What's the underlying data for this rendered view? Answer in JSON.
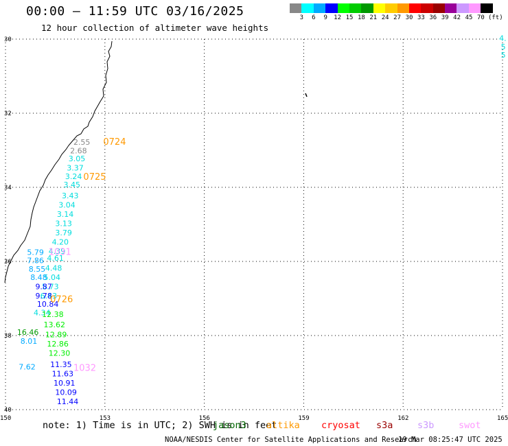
{
  "header": {
    "title": "00:00 — 11:59 UTC 03/16/2025",
    "subtitle": "12 hour collection of altimeter wave heights"
  },
  "legend": {
    "colors": [
      "#888888",
      "#00ffff",
      "#00aaff",
      "#0000ff",
      "#00ff00",
      "#00cc00",
      "#009900",
      "#ffff00",
      "#ffcc00",
      "#ff9900",
      "#ff0000",
      "#cc0000",
      "#990000",
      "#990099",
      "#cc99ff",
      "#ff99ff",
      "#000000"
    ],
    "labels": [
      "3",
      "6",
      "9",
      "12",
      "15",
      "18",
      "21",
      "24",
      "27",
      "30",
      "33",
      "36",
      "39",
      "42",
      "45",
      "70",
      "(ft)"
    ]
  },
  "axes": {
    "lat_labels": [
      "30",
      "32",
      "34",
      "36",
      "38",
      "40"
    ],
    "lon_labels": [
      "150",
      "153",
      "156",
      "159",
      "162",
      "165"
    ]
  },
  "chart_data": {
    "type": "scatter",
    "x_range": [
      150,
      165
    ],
    "y_range": [
      -40,
      -30
    ],
    "points": [
      {
        "lon": 152.05,
        "lat": -32.85,
        "v": "2.55",
        "c": "#888888"
      },
      {
        "lon": 151.95,
        "lat": -33.08,
        "v": "2.68",
        "c": "#888888"
      },
      {
        "lon": 151.9,
        "lat": -33.3,
        "v": "3.05",
        "c": "#00dddd"
      },
      {
        "lon": 151.85,
        "lat": -33.55,
        "v": "3.37",
        "c": "#00dddd"
      },
      {
        "lon": 151.8,
        "lat": -33.78,
        "v": "3.24",
        "c": "#00dddd"
      },
      {
        "lon": 151.75,
        "lat": -34.0,
        "v": "3.45",
        "c": "#00dddd"
      },
      {
        "lon": 151.7,
        "lat": -34.3,
        "v": "3.43",
        "c": "#00dddd"
      },
      {
        "lon": 151.6,
        "lat": -34.55,
        "v": "3.04",
        "c": "#00dddd"
      },
      {
        "lon": 151.55,
        "lat": -34.8,
        "v": "3.14",
        "c": "#00dddd"
      },
      {
        "lon": 151.5,
        "lat": -35.05,
        "v": "3.13",
        "c": "#00dddd"
      },
      {
        "lon": 151.5,
        "lat": -35.3,
        "v": "3.79",
        "c": "#00dddd"
      },
      {
        "lon": 151.4,
        "lat": -35.55,
        "v": "4.20",
        "c": "#00dddd"
      },
      {
        "lon": 151.3,
        "lat": -35.8,
        "v": "4.39",
        "c": "#00dddd"
      },
      {
        "lon": 151.25,
        "lat": -35.98,
        "v": "4.61",
        "c": "#00dddd"
      },
      {
        "lon": 151.2,
        "lat": -36.25,
        "v": "4.48",
        "c": "#00dddd"
      },
      {
        "lon": 151.15,
        "lat": -36.5,
        "v": "5.04",
        "c": "#00dddd"
      },
      {
        "lon": 151.1,
        "lat": -36.75,
        "v": "5.73",
        "c": "#00dddd"
      },
      {
        "lon": 151.05,
        "lat": -37.0,
        "v": "6.43",
        "c": "#00dddd"
      },
      {
        "lon": 150.65,
        "lat": -35.82,
        "v": "5.79",
        "c": "#00aaff"
      },
      {
        "lon": 150.65,
        "lat": -36.05,
        "v": "7.86",
        "c": "#00aaff"
      },
      {
        "lon": 150.7,
        "lat": -36.28,
        "v": "8.55",
        "c": "#00aaff"
      },
      {
        "lon": 150.75,
        "lat": -36.5,
        "v": "8.48",
        "c": "#00aaff"
      },
      {
        "lon": 150.9,
        "lat": -36.75,
        "v": "9.87",
        "c": "#0000ff"
      },
      {
        "lon": 150.9,
        "lat": -37.0,
        "v": "9.78",
        "c": "#0000ff"
      },
      {
        "lon": 150.95,
        "lat": -37.22,
        "v": "10.84",
        "c": "#0000ff"
      },
      {
        "lon": 150.85,
        "lat": -37.45,
        "v": "4.34",
        "c": "#00dddd"
      },
      {
        "lon": 151.1,
        "lat": -37.5,
        "v": "12.38",
        "c": "#00ee00"
      },
      {
        "lon": 151.15,
        "lat": -37.78,
        "v": "13.62",
        "c": "#00ee00"
      },
      {
        "lon": 151.2,
        "lat": -38.05,
        "v": "12.89",
        "c": "#00ee00"
      },
      {
        "lon": 151.25,
        "lat": -38.3,
        "v": "12.86",
        "c": "#00ee00"
      },
      {
        "lon": 151.3,
        "lat": -38.55,
        "v": "12.30",
        "c": "#00ee00"
      },
      {
        "lon": 150.35,
        "lat": -37.98,
        "v": "16.46",
        "c": "#009900"
      },
      {
        "lon": 150.45,
        "lat": -38.22,
        "v": "8.01",
        "c": "#00aaff"
      },
      {
        "lon": 151.35,
        "lat": -38.85,
        "v": "11.35",
        "c": "#0000ff"
      },
      {
        "lon": 151.4,
        "lat": -39.1,
        "v": "11.63",
        "c": "#0000ff"
      },
      {
        "lon": 151.45,
        "lat": -39.35,
        "v": "10.91",
        "c": "#0000ff"
      },
      {
        "lon": 151.5,
        "lat": -39.6,
        "v": "10.09",
        "c": "#0000ff"
      },
      {
        "lon": 151.55,
        "lat": -39.85,
        "v": "11.44",
        "c": "#0000ff"
      },
      {
        "lon": 150.4,
        "lat": -38.92,
        "v": "7.62",
        "c": "#00aaff"
      },
      {
        "lon": 164.9,
        "lat": -30.05,
        "v": "4.",
        "c": "#00dddd"
      },
      {
        "lon": 164.95,
        "lat": -30.28,
        "v": "5",
        "c": "#00dddd"
      },
      {
        "lon": 164.95,
        "lat": -30.5,
        "v": "5",
        "c": "#00dddd"
      }
    ],
    "time_labels": [
      {
        "lon": 152.95,
        "lat": -32.85,
        "t": "0724",
        "c": "#ff9900"
      },
      {
        "lon": 152.35,
        "lat": -33.8,
        "t": "0725",
        "c": "#ff9900"
      },
      {
        "lon": 151.3,
        "lat": -35.82,
        "t": "1031",
        "c": "#ff99ff"
      },
      {
        "lon": 151.35,
        "lat": -37.1,
        "t": "0726",
        "c": "#ff9900"
      },
      {
        "lon": 152.05,
        "lat": -38.95,
        "t": "1032",
        "c": "#ff99ff"
      }
    ]
  },
  "footer": {
    "note": "note: 1) Time is in UTC; 2) SWH is in feet",
    "satellites": [
      {
        "name": "jason3",
        "color": "#006600"
      },
      {
        "name": "altika",
        "color": "#ff9900"
      },
      {
        "name": "cryosat",
        "color": "#ff0000"
      },
      {
        "name": "s3a",
        "color": "#990000"
      },
      {
        "name": "s3b",
        "color": "#cc99ff"
      },
      {
        "name": "swot",
        "color": "#ff99ff"
      }
    ],
    "credit": "NOAA/NESDIS Center for Satellite Applications and Research",
    "timestamp": "19 Mar 08:25:47 UTC 2025"
  }
}
